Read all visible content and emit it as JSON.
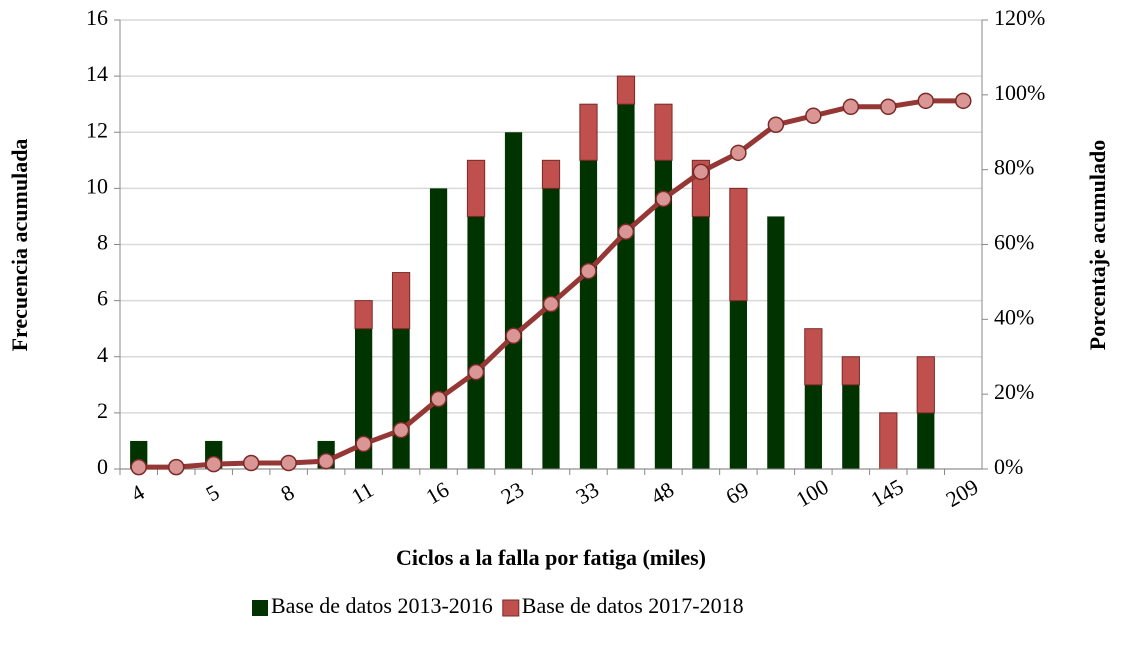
{
  "chart_data": {
    "type": "bar_line",
    "x_label": "Ciclos a la falla por fatiga (miles)",
    "y_label": "Frecuencia acumulada",
    "y2_label": "Porcentaje acumulado",
    "categories": [
      "4",
      null,
      "5",
      null,
      "8",
      null,
      "11",
      null,
      "16",
      null,
      "23",
      null,
      "33",
      null,
      "48",
      null,
      "69",
      null,
      "100",
      null,
      "145",
      null,
      "209"
    ],
    "series": [
      {
        "name": "Base de datos 2013-2016",
        "color": "#003300",
        "values": [
          1,
          0,
          1,
          0,
          0,
          1,
          5,
          5,
          10,
          9,
          12,
          10,
          11,
          13,
          11,
          9,
          6,
          9,
          3,
          3,
          0,
          2,
          0
        ]
      },
      {
        "name": "Base de datos 2017-2018",
        "color": "#c0504d",
        "values": [
          0,
          0,
          0,
          0,
          0,
          0,
          1,
          2,
          0,
          2,
          0,
          1,
          2,
          1,
          2,
          2,
          4,
          0,
          2,
          1,
          2,
          2,
          0
        ]
      },
      {
        "axis": "y2",
        "color": "#953735",
        "marker_color": "#d99694",
        "values": [
          0.5,
          0.5,
          1.3,
          1.6,
          1.6,
          2.1,
          6.7,
          10.4,
          18.7,
          25.9,
          35.6,
          44.1,
          52.9,
          63.4,
          72.2,
          79.4,
          84.5,
          92,
          94.4,
          96.8,
          96.8,
          98.4,
          98.4
        ]
      }
    ],
    "ylim": [
      0,
      16
    ],
    "yticks": [
      0,
      2,
      4,
      6,
      8,
      10,
      12,
      14,
      16
    ],
    "y2lim": [
      0,
      120
    ],
    "y2ticks": [
      {
        "value": 0,
        "label": "0%"
      },
      {
        "value": 20,
        "label": "20%"
      },
      {
        "value": 40,
        "label": "40%"
      },
      {
        "value": 60,
        "label": "60%"
      },
      {
        "value": 80,
        "label": "80%"
      },
      {
        "value": 100,
        "label": "100%"
      },
      {
        "value": 120,
        "label": "120%"
      }
    ],
    "grid": true,
    "legend": "bottom"
  }
}
